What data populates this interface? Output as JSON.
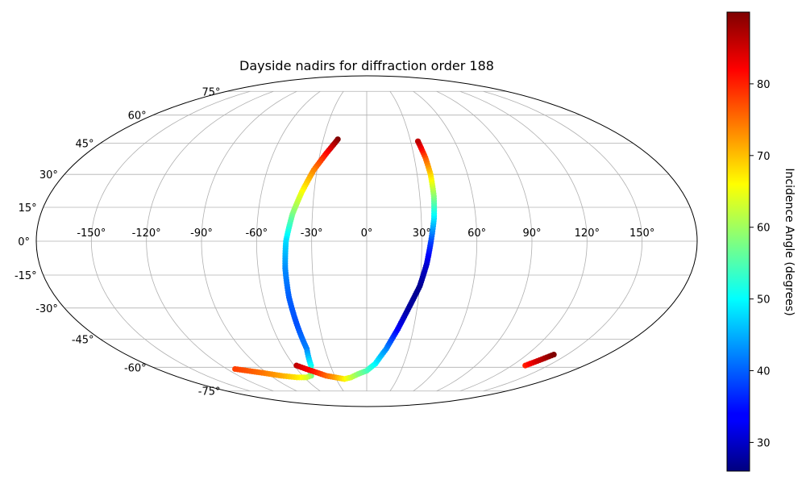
{
  "chart_data": {
    "type": "scatter",
    "projection": "mollweide",
    "title": "Dayside nadirs for diffraction order 188",
    "grid": true,
    "longitude_ticks": [
      "-150°",
      "-120°",
      "-90°",
      "-60°",
      "-30°",
      "0°",
      "30°",
      "60°",
      "90°",
      "120°",
      "150°"
    ],
    "latitude_ticks": [
      "-75°",
      "-60°",
      "-45°",
      "-30°",
      "-15°",
      "0°",
      "15°",
      "30°",
      "45°",
      "60°",
      "75°"
    ],
    "colorbar": {
      "label": "Incidence Angle (degrees)",
      "colormap": "jet",
      "range": [
        26,
        90
      ],
      "ticks": [
        "30",
        "40",
        "50",
        "60",
        "70",
        "80"
      ]
    },
    "series": [
      {
        "points": [
          {
            "lon": -20,
            "lat": 47,
            "incidence": 90
          },
          {
            "lon": -26,
            "lat": 40,
            "incidence": 82
          },
          {
            "lon": -32,
            "lat": 32,
            "incidence": 74
          },
          {
            "lon": -37,
            "lat": 22,
            "incidence": 66
          },
          {
            "lon": -41,
            "lat": 12,
            "incidence": 58
          },
          {
            "lon": -44,
            "lat": 0,
            "incidence": 48
          },
          {
            "lon": -45,
            "lat": -12,
            "incidence": 43
          },
          {
            "lon": -45,
            "lat": -25,
            "incidence": 40
          },
          {
            "lon": -44,
            "lat": -38,
            "incidence": 39
          },
          {
            "lon": -43,
            "lat": -50,
            "incidence": 42
          },
          {
            "lon": -46,
            "lat": -59,
            "incidence": 50
          },
          {
            "lon": -52,
            "lat": -65,
            "incidence": 58
          },
          {
            "lon": -58,
            "lat": -66,
            "incidence": 63
          },
          {
            "lon": -67,
            "lat": -66,
            "incidence": 67
          },
          {
            "lon": -80,
            "lat": -65,
            "incidence": 71
          },
          {
            "lon": -96,
            "lat": -63,
            "incidence": 75
          },
          {
            "lon": -113,
            "lat": -61,
            "incidence": 78
          }
        ]
      },
      {
        "points": [
          {
            "lon": -58,
            "lat": -59,
            "incidence": 86
          },
          {
            "lon": -52,
            "lat": -61,
            "incidence": 83
          },
          {
            "lon": -45,
            "lat": -63,
            "incidence": 80
          },
          {
            "lon": -38,
            "lat": -65,
            "incidence": 76
          },
          {
            "lon": -30,
            "lat": -66,
            "incidence": 72
          },
          {
            "lon": -22,
            "lat": -67,
            "incidence": 67
          },
          {
            "lon": -15,
            "lat": -66,
            "incidence": 63
          },
          {
            "lon": -8,
            "lat": -64,
            "incidence": 59
          },
          {
            "lon": 0,
            "lat": -62,
            "incidence": 55
          },
          {
            "lon": 7,
            "lat": -58,
            "incidence": 50
          },
          {
            "lon": 14,
            "lat": -50,
            "incidence": 43
          },
          {
            "lon": 20,
            "lat": -40,
            "incidence": 34
          },
          {
            "lon": 25,
            "lat": -30,
            "incidence": 28
          },
          {
            "lon": 30,
            "lat": -20,
            "incidence": 27
          },
          {
            "lon": 33,
            "lat": -10,
            "incidence": 31
          },
          {
            "lon": 35,
            "lat": 0,
            "incidence": 38
          },
          {
            "lon": 37,
            "lat": 10,
            "incidence": 48
          },
          {
            "lon": 38,
            "lat": 20,
            "incidence": 58
          },
          {
            "lon": 38,
            "lat": 30,
            "incidence": 68
          },
          {
            "lon": 37,
            "lat": 38,
            "incidence": 76
          },
          {
            "lon": 35,
            "lat": 46,
            "incidence": 86
          }
        ]
      },
      {
        "points": [
          {
            "lon": 131,
            "lat": -59,
            "incidence": 80
          },
          {
            "lon": 134,
            "lat": -57,
            "incidence": 84
          },
          {
            "lon": 137,
            "lat": -55,
            "incidence": 87
          },
          {
            "lon": 140,
            "lat": -53,
            "incidence": 90
          }
        ]
      }
    ]
  }
}
